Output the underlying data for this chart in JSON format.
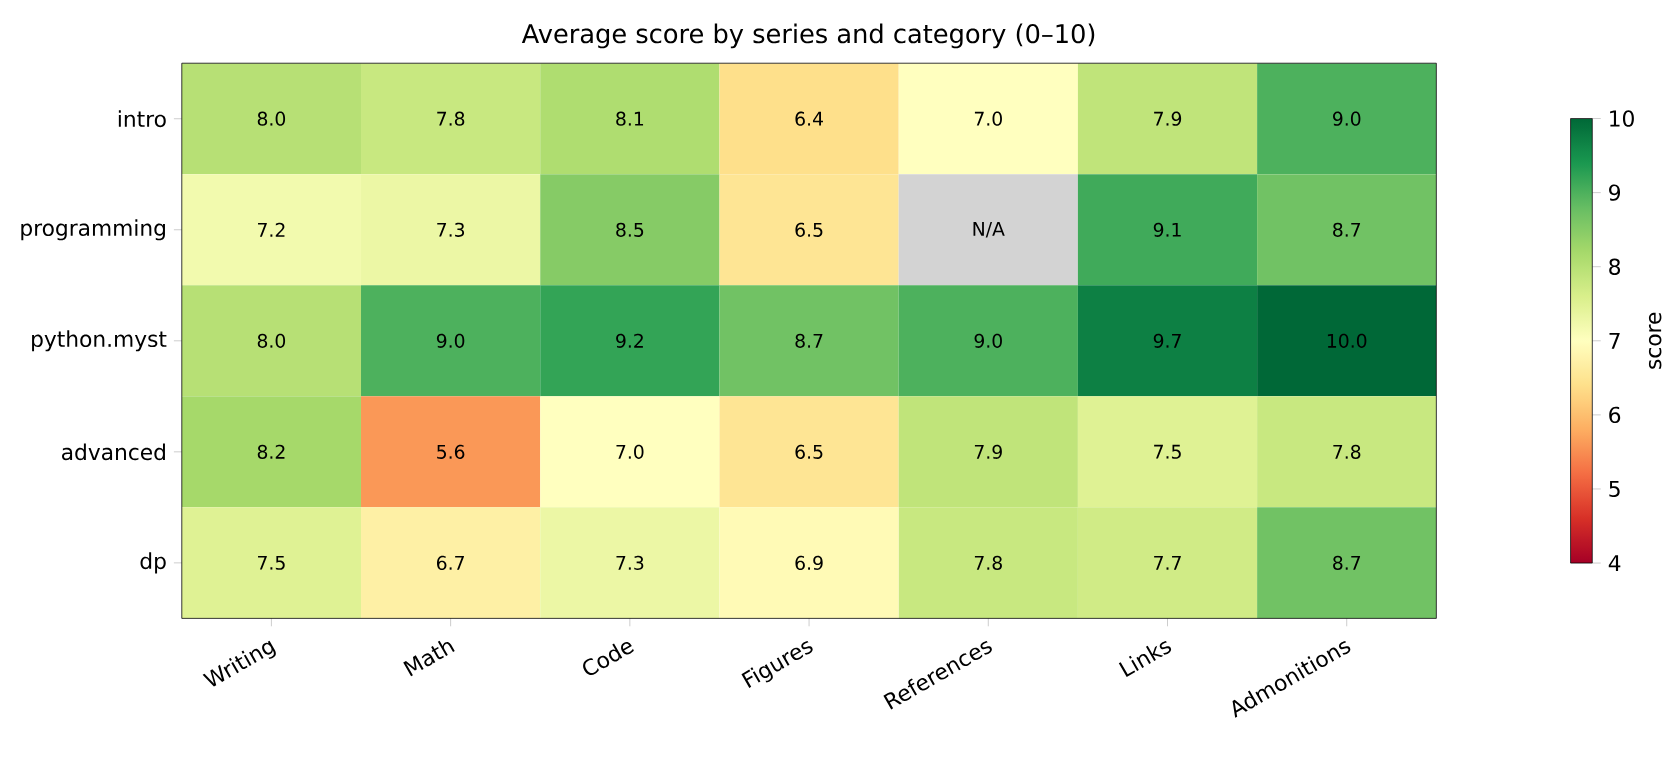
{
  "chart_data": {
    "type": "heatmap",
    "title": "Average score by series and category (0–10)",
    "categories": [
      "Writing",
      "Math",
      "Code",
      "Figures",
      "References",
      "Links",
      "Admonitions"
    ],
    "y_categories": [
      "intro",
      "programming",
      "python.myst",
      "advanced",
      "dp"
    ],
    "cells": [
      [
        8.0,
        7.8,
        8.1,
        6.4,
        7.0,
        7.9,
        9.0
      ],
      [
        7.2,
        7.3,
        8.5,
        6.5,
        null,
        9.1,
        8.7
      ],
      [
        8.0,
        9.0,
        9.2,
        8.7,
        9.0,
        9.7,
        10.0
      ],
      [
        8.2,
        5.6,
        7.0,
        6.5,
        7.9,
        7.5,
        7.8
      ],
      [
        7.5,
        6.7,
        7.3,
        6.9,
        7.8,
        7.7,
        8.7
      ]
    ],
    "cell_labels": [
      [
        "8.0",
        "7.8",
        "8.1",
        "6.4",
        "7.0",
        "7.9",
        "9.0"
      ],
      [
        "7.2",
        "7.3",
        "8.5",
        "6.5",
        "N/A",
        "9.1",
        "8.7"
      ],
      [
        "8.0",
        "9.0",
        "9.2",
        "8.7",
        "9.0",
        "9.7",
        "10.0"
      ],
      [
        "8.2",
        "5.6",
        "7.0",
        "6.5",
        "7.9",
        "7.5",
        "7.8"
      ],
      [
        "7.5",
        "6.7",
        "7.3",
        "6.9",
        "7.8",
        "7.7",
        "8.7"
      ]
    ],
    "clim": [
      4,
      10
    ],
    "cticks": [
      4,
      5,
      6,
      7,
      8,
      9,
      10
    ],
    "clabel": "score"
  }
}
